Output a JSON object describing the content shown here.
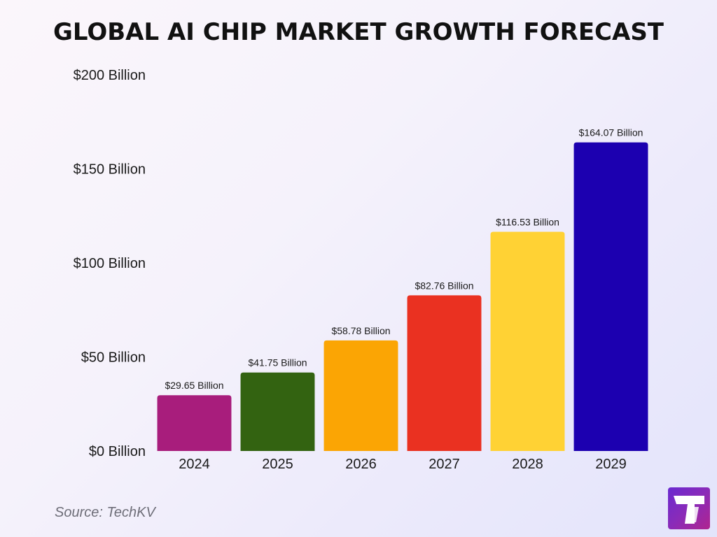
{
  "title": "GLOBAL AI CHIP MARKET GROWTH FORECAST",
  "source": "Source: TechKV",
  "logo_icon": "techkv-t-logo",
  "chart_data": {
    "type": "bar",
    "title": "GLOBAL AI CHIP MARKET GROWTH FORECAST",
    "xlabel": "",
    "ylabel": "",
    "categories": [
      "2024",
      "2025",
      "2026",
      "2027",
      "2028",
      "2029"
    ],
    "values": [
      29.65,
      41.75,
      58.78,
      82.76,
      116.53,
      164.07
    ],
    "data_labels": [
      "$29.65 Billion",
      "$41.75 Billion",
      "$58.78 Billion",
      "$82.76 Billion",
      "$116.53 Billion",
      "$164.07 Billion"
    ],
    "bar_colors": [
      "#a81d7c",
      "#336311",
      "#fba504",
      "#ea3121",
      "#ffd234",
      "#1c00b0"
    ],
    "ylim": [
      0,
      200
    ],
    "yticks": [
      0,
      50,
      100,
      150,
      200
    ],
    "ytick_labels": [
      "$0 Billion",
      "$50 Billion",
      "$100 Billion",
      "$150 Billion",
      "$200 Billion"
    ],
    "grid": false,
    "legend": "none"
  }
}
